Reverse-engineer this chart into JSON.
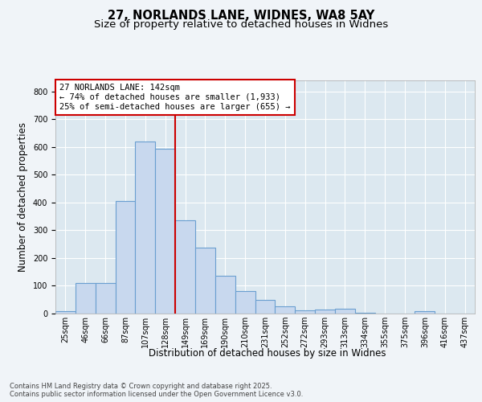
{
  "title_line1": "27, NORLANDS LANE, WIDNES, WA8 5AY",
  "title_line2": "Size of property relative to detached houses in Widnes",
  "xlabel": "Distribution of detached houses by size in Widnes",
  "ylabel": "Number of detached properties",
  "categories": [
    "25sqm",
    "46sqm",
    "66sqm",
    "87sqm",
    "107sqm",
    "128sqm",
    "149sqm",
    "169sqm",
    "190sqm",
    "210sqm",
    "231sqm",
    "252sqm",
    "272sqm",
    "293sqm",
    "313sqm",
    "334sqm",
    "355sqm",
    "375sqm",
    "396sqm",
    "416sqm",
    "437sqm"
  ],
  "values": [
    8,
    110,
    110,
    405,
    620,
    595,
    335,
    238,
    135,
    80,
    50,
    27,
    12,
    15,
    17,
    3,
    0,
    0,
    10,
    0,
    0
  ],
  "bar_color": "#c8d8ee",
  "bar_edge_color": "#6a9fd0",
  "vline_x": 5.5,
  "vline_color": "#cc0000",
  "annotation_text": "27 NORLANDS LANE: 142sqm\n← 74% of detached houses are smaller (1,933)\n25% of semi-detached houses are larger (655) →",
  "annotation_box_color": "#ffffff",
  "annotation_box_edge": "#cc0000",
  "plot_bg_color": "#dce8f0",
  "fig_bg_color": "#f0f4f8",
  "ylim": [
    0,
    840
  ],
  "yticks": [
    0,
    100,
    200,
    300,
    400,
    500,
    600,
    700,
    800
  ],
  "footer_text": "Contains HM Land Registry data © Crown copyright and database right 2025.\nContains public sector information licensed under the Open Government Licence v3.0.",
  "grid_color": "#ffffff",
  "title_fontsize": 10.5,
  "subtitle_fontsize": 9.5,
  "tick_fontsize": 7,
  "label_fontsize": 8.5,
  "footer_fontsize": 6
}
